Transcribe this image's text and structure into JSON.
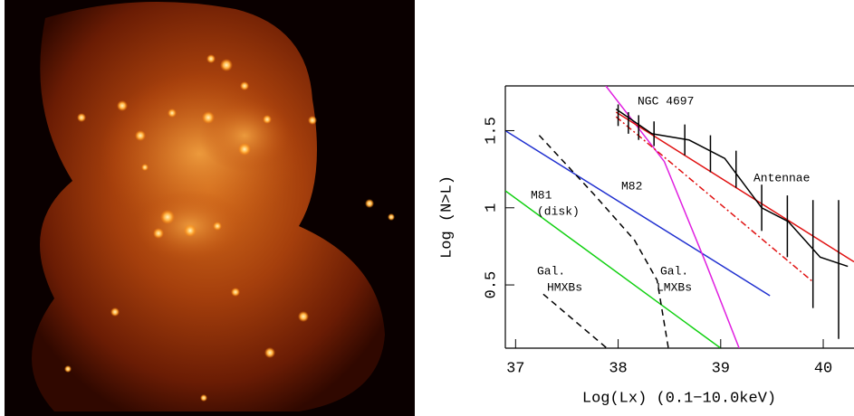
{
  "chart_data": {
    "type": "line",
    "xlabel": "Log(Lx)  (0.1−10.0keV)",
    "ylabel": "Log (N>L)",
    "xlim": [
      36.9,
      40.3
    ],
    "ylim": [
      0.09,
      1.79
    ],
    "xticks": [
      37,
      38,
      39,
      40
    ],
    "yticks": [
      0.5,
      1,
      1.5
    ],
    "annotations": [
      "NGC 4697",
      "M82",
      "Antennae",
      "M81",
      "(disk)",
      "Gal.",
      "HMXBs",
      "Gal.",
      "LMXBs"
    ],
    "series": [
      {
        "color": "#2030d0",
        "dash": "solid",
        "x": [
          36.9,
          39.48
        ],
        "values": [
          1.5,
          0.43
        ]
      },
      {
        "color": "#10d010",
        "dash": "solid",
        "x": [
          36.9,
          39.0
        ],
        "values": [
          1.11,
          0.09
        ]
      },
      {
        "color": "#e020e0",
        "dash": "solid",
        "x": [
          37.88,
          38.45,
          38.85,
          39.18
        ],
        "values": [
          1.79,
          1.3,
          0.65,
          0.09
        ]
      },
      {
        "color": "#e01010",
        "dash": "solid",
        "x": [
          37.98,
          40.3
        ],
        "values": [
          1.62,
          0.65
        ]
      },
      {
        "color": "#e01010",
        "dash": "dashdot",
        "x": [
          37.98,
          39.9
        ],
        "values": [
          1.59,
          0.52
        ]
      },
      {
        "color": "#000000",
        "dash": "solid",
        "x": [
          37.98,
          38.33,
          38.69,
          39.04,
          39.4,
          39.66,
          39.97,
          40.24
        ],
        "values": [
          1.64,
          1.48,
          1.44,
          1.32,
          1.0,
          0.91,
          0.68,
          0.62
        ]
      },
      {
        "color": "#000000",
        "dash": "dashed",
        "x": [
          37.23,
          37.76,
          38.16,
          38.38,
          38.49
        ],
        "values": [
          1.47,
          1.09,
          0.79,
          0.53,
          0.09
        ]
      },
      {
        "color": "#000000",
        "dash": "dashed",
        "x": [
          37.27,
          37.89
        ],
        "values": [
          0.44,
          0.09
        ]
      },
      {
        "color": "#000000",
        "dash": "none",
        "x": [
          38.0,
          38.1,
          38.2,
          38.35,
          38.65,
          38.9,
          39.15,
          39.4,
          39.65,
          39.9,
          40.15
        ],
        "values": [
          1.6,
          1.55,
          1.52,
          1.48,
          1.44,
          1.35,
          1.25,
          1.0,
          0.88,
          0.7,
          0.6
        ],
        "errors": [
          0.07,
          0.07,
          0.08,
          0.08,
          0.1,
          0.12,
          0.12,
          0.15,
          0.2,
          0.35,
          0.45
        ]
      }
    ]
  }
}
